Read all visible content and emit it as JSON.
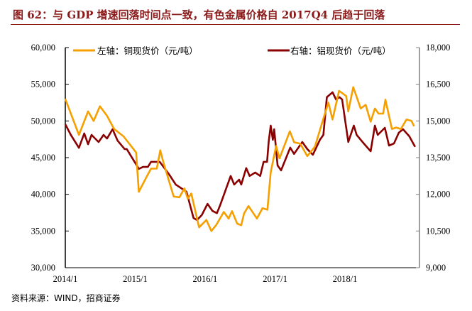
{
  "header": {
    "title": "图 62：与 GDP 增速回落时间点一致，有色金属价格自 2017Q4 后趋于回落"
  },
  "footer": {
    "source": "资料来源：WIND，招商证券"
  },
  "chart_data": {
    "type": "line",
    "title": "",
    "xlabel": "",
    "ylabel": "",
    "legend_placement": "top",
    "grid": false,
    "x_ticks": [
      "2014/1",
      "2015/1",
      "2016/1",
      "2017/1",
      "2018/1"
    ],
    "x_range": [
      "2014-01-01",
      "2019-01-25"
    ],
    "y_left": {
      "range": [
        30000,
        60000
      ],
      "ticks": [
        "30,000",
        "35,000",
        "40,000",
        "45,000",
        "50,000",
        "55,000",
        "60,000"
      ]
    },
    "y_right": {
      "range": [
        9000,
        18000
      ],
      "ticks": [
        "9,000",
        "10,500",
        "12,000",
        "13,500",
        "15,000",
        "16,500",
        "18,000"
      ]
    },
    "series": [
      {
        "name": "左轴：铜现货价（元/吨）",
        "axis": "left",
        "color": "#f5a000",
        "points": [
          [
            "2014-01-01",
            53000
          ],
          [
            "2014-03-13",
            48100
          ],
          [
            "2014-04-30",
            51300
          ],
          [
            "2014-05-29",
            50000
          ],
          [
            "2014-07-01",
            52000
          ],
          [
            "2014-08-07",
            50700
          ],
          [
            "2014-09-13",
            48900
          ],
          [
            "2014-11-01",
            47900
          ],
          [
            "2015-01-06",
            45700
          ],
          [
            "2015-01-20",
            40350
          ],
          [
            "2015-02-28",
            42300
          ],
          [
            "2015-03-25",
            43500
          ],
          [
            "2015-04-24",
            43500
          ],
          [
            "2015-05-12",
            46000
          ],
          [
            "2015-05-27",
            44500
          ],
          [
            "2015-07-21",
            39700
          ],
          [
            "2015-08-20",
            39600
          ],
          [
            "2015-09-15",
            40800
          ],
          [
            "2015-10-03",
            39400
          ],
          [
            "2015-10-21",
            40100
          ],
          [
            "2015-12-01",
            35500
          ],
          [
            "2016-01-08",
            36500
          ],
          [
            "2016-02-03",
            35000
          ],
          [
            "2016-02-28",
            35800
          ],
          [
            "2016-04-08",
            37600
          ],
          [
            "2016-05-03",
            36700
          ],
          [
            "2016-05-21",
            37700
          ],
          [
            "2016-06-17",
            36000
          ],
          [
            "2016-07-08",
            35800
          ],
          [
            "2016-07-23",
            37400
          ],
          [
            "2016-08-15",
            38400
          ],
          [
            "2016-09-28",
            36700
          ],
          [
            "2016-10-27",
            38100
          ],
          [
            "2016-11-22",
            37900
          ],
          [
            "2016-12-09",
            43000
          ],
          [
            "2017-01-06",
            46600
          ],
          [
            "2017-01-24",
            44900
          ],
          [
            "2017-03-19",
            48600
          ],
          [
            "2017-04-10",
            47100
          ],
          [
            "2017-05-12",
            46900
          ],
          [
            "2017-06-18",
            45200
          ],
          [
            "2017-07-28",
            46500
          ],
          [
            "2017-09-03",
            49700
          ],
          [
            "2017-10-06",
            52500
          ],
          [
            "2017-10-28",
            50200
          ],
          [
            "2017-12-01",
            54100
          ],
          [
            "2018-01-07",
            53400
          ],
          [
            "2018-01-18",
            51300
          ],
          [
            "2018-02-13",
            54600
          ],
          [
            "2018-03-24",
            51700
          ],
          [
            "2018-04-19",
            52200
          ],
          [
            "2018-05-15",
            49900
          ],
          [
            "2018-06-06",
            51700
          ],
          [
            "2018-06-25",
            51000
          ],
          [
            "2018-07-19",
            51000
          ],
          [
            "2018-07-31",
            52900
          ],
          [
            "2018-09-03",
            48900
          ],
          [
            "2018-09-25",
            49100
          ],
          [
            "2018-10-20",
            48900
          ],
          [
            "2018-11-18",
            50200
          ],
          [
            "2018-12-14",
            50000
          ],
          [
            "2018-12-28",
            49300
          ]
        ]
      },
      {
        "name": "右轴：铝现货价（元/吨）",
        "axis": "right",
        "color": "#8b0000",
        "points": [
          [
            "2014-01-01",
            14865
          ],
          [
            "2014-01-30",
            14430
          ],
          [
            "2014-03-13",
            13900
          ],
          [
            "2014-04-10",
            14490
          ],
          [
            "2014-04-30",
            14050
          ],
          [
            "2014-05-18",
            14430
          ],
          [
            "2014-06-24",
            14140
          ],
          [
            "2014-07-20",
            14430
          ],
          [
            "2014-08-07",
            14280
          ],
          [
            "2014-09-05",
            14660
          ],
          [
            "2014-10-01",
            14200
          ],
          [
            "2014-11-07",
            13850
          ],
          [
            "2014-11-18",
            13850
          ],
          [
            "2015-01-20",
            13040
          ],
          [
            "2015-02-11",
            13120
          ],
          [
            "2015-03-08",
            13120
          ],
          [
            "2015-03-25",
            13330
          ],
          [
            "2015-05-09",
            13330
          ],
          [
            "2015-06-26",
            12830
          ],
          [
            "2015-08-01",
            12400
          ],
          [
            "2015-09-26",
            12110
          ],
          [
            "2015-11-02",
            11030
          ],
          [
            "2015-11-20",
            10950
          ],
          [
            "2015-12-15",
            11150
          ],
          [
            "2016-01-14",
            11610
          ],
          [
            "2016-02-09",
            11320
          ],
          [
            "2016-03-03",
            11230
          ],
          [
            "2016-03-21",
            11580
          ],
          [
            "2016-05-14",
            12750
          ],
          [
            "2016-06-01",
            12400
          ],
          [
            "2016-06-27",
            12600
          ],
          [
            "2016-07-08",
            12400
          ],
          [
            "2016-08-03",
            13070
          ],
          [
            "2016-08-21",
            12750
          ],
          [
            "2016-09-19",
            12890
          ],
          [
            "2016-10-15",
            12750
          ],
          [
            "2016-11-02",
            13330
          ],
          [
            "2016-11-20",
            13330
          ],
          [
            "2016-11-28",
            14140
          ],
          [
            "2016-12-09",
            14810
          ],
          [
            "2016-12-20",
            14230
          ],
          [
            "2016-12-27",
            14660
          ],
          [
            "2017-01-14",
            13180
          ],
          [
            "2017-02-01",
            12980
          ],
          [
            "2017-03-03",
            13560
          ],
          [
            "2017-03-21",
            13910
          ],
          [
            "2017-04-10",
            13650
          ],
          [
            "2017-05-23",
            14140
          ],
          [
            "2017-06-18",
            13850
          ],
          [
            "2017-07-17",
            13620
          ],
          [
            "2017-08-23",
            14230
          ],
          [
            "2017-09-10",
            14430
          ],
          [
            "2017-09-28",
            15970
          ],
          [
            "2017-10-28",
            16170
          ],
          [
            "2017-11-15",
            15880
          ],
          [
            "2017-12-03",
            15970
          ],
          [
            "2017-12-17",
            15880
          ],
          [
            "2018-01-18",
            14140
          ],
          [
            "2018-02-16",
            14810
          ],
          [
            "2018-03-03",
            14430
          ],
          [
            "2018-04-09",
            14080
          ],
          [
            "2018-05-15",
            13760
          ],
          [
            "2018-06-06",
            14810
          ],
          [
            "2018-06-21",
            14430
          ],
          [
            "2018-07-28",
            14720
          ],
          [
            "2018-08-19",
            13990
          ],
          [
            "2018-09-14",
            14080
          ],
          [
            "2018-10-09",
            14520
          ],
          [
            "2018-10-31",
            14660
          ],
          [
            "2018-12-03",
            14370
          ],
          [
            "2019-01-02",
            13940
          ]
        ]
      }
    ]
  }
}
